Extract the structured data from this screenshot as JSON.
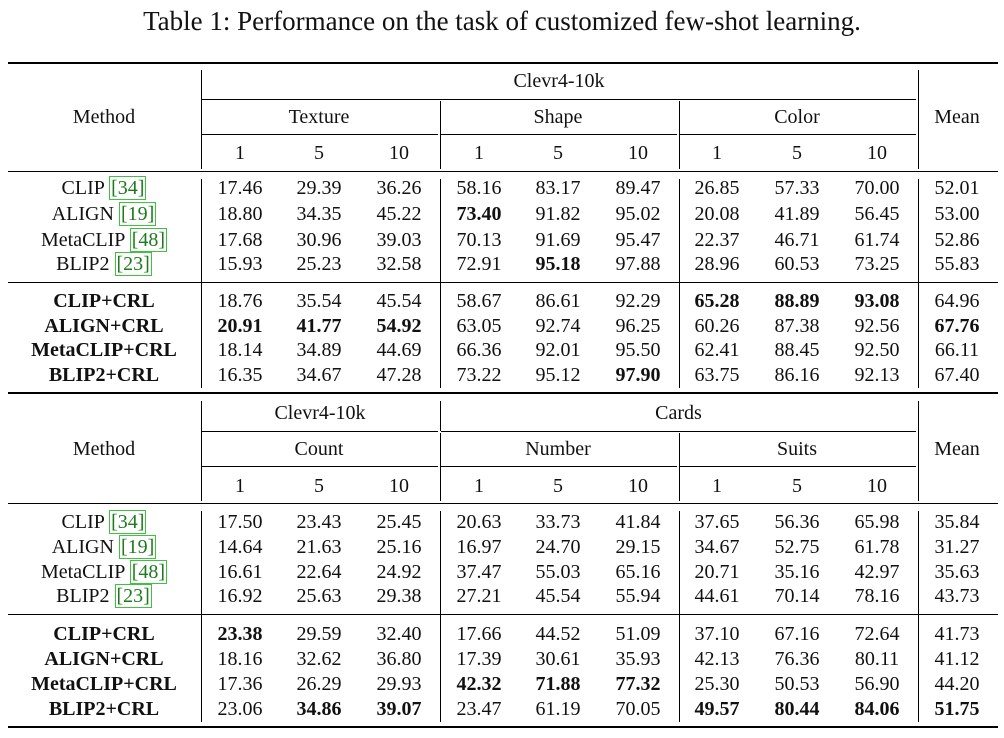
{
  "caption": "Table 1: Performance on the task of customized few-shot learning.",
  "method_header": "Method",
  "mean_header": "Mean",
  "shot_labels": [
    "1",
    "5",
    "10"
  ],
  "tables": [
    {
      "groups": [
        {
          "label": "Clevr4-10k",
          "subgroups": [
            "Texture",
            "Shape",
            "Color"
          ]
        }
      ],
      "baseline_rows": [
        {
          "method": "CLIP",
          "ref": "[34]",
          "values": [
            "17.46",
            "29.39",
            "36.26",
            "58.16",
            "83.17",
            "89.47",
            "26.85",
            "57.33",
            "70.00",
            "52.01"
          ],
          "bold": []
        },
        {
          "method": "ALIGN",
          "ref": "[19]",
          "values": [
            "18.80",
            "34.35",
            "45.22",
            "73.40",
            "91.82",
            "95.02",
            "20.08",
            "41.89",
            "56.45",
            "53.00"
          ],
          "bold": [
            3
          ]
        },
        {
          "method": "MetaCLIP",
          "ref": "[48]",
          "values": [
            "17.68",
            "30.96",
            "39.03",
            "70.13",
            "91.69",
            "95.47",
            "22.37",
            "46.71",
            "61.74",
            "52.86"
          ],
          "bold": []
        },
        {
          "method": "BLIP2",
          "ref": "[23]",
          "values": [
            "15.93",
            "25.23",
            "32.58",
            "72.91",
            "95.18",
            "97.88",
            "28.96",
            "60.53",
            "73.25",
            "55.83"
          ],
          "bold": [
            4
          ]
        }
      ],
      "crl_rows": [
        {
          "method": "CLIP+CRL",
          "values": [
            "18.76",
            "35.54",
            "45.54",
            "58.67",
            "86.61",
            "92.29",
            "65.28",
            "88.89",
            "93.08",
            "64.96"
          ],
          "bold": [
            6,
            7,
            8
          ]
        },
        {
          "method": "ALIGN+CRL",
          "values": [
            "20.91",
            "41.77",
            "54.92",
            "63.05",
            "92.74",
            "96.25",
            "60.26",
            "87.38",
            "92.56",
            "67.76"
          ],
          "bold": [
            0,
            1,
            2,
            9
          ]
        },
        {
          "method": "MetaCLIP+CRL",
          "values": [
            "18.14",
            "34.89",
            "44.69",
            "66.36",
            "92.01",
            "95.50",
            "62.41",
            "88.45",
            "92.50",
            "66.11"
          ],
          "bold": []
        },
        {
          "method": "BLIP2+CRL",
          "values": [
            "16.35",
            "34.67",
            "47.28",
            "73.22",
            "95.12",
            "97.90",
            "63.75",
            "86.16",
            "92.13",
            "67.40"
          ],
          "bold": [
            5
          ]
        }
      ]
    },
    {
      "groups": [
        {
          "label": "Clevr4-10k",
          "subgroups": [
            "Count"
          ]
        },
        {
          "label": "Cards",
          "subgroups": [
            "Number",
            "Suits"
          ]
        }
      ],
      "baseline_rows": [
        {
          "method": "CLIP",
          "ref": "[34]",
          "values": [
            "17.50",
            "23.43",
            "25.45",
            "20.63",
            "33.73",
            "41.84",
            "37.65",
            "56.36",
            "65.98",
            "35.84"
          ],
          "bold": []
        },
        {
          "method": "ALIGN",
          "ref": "[19]",
          "values": [
            "14.64",
            "21.63",
            "25.16",
            "16.97",
            "24.70",
            "29.15",
            "34.67",
            "52.75",
            "61.78",
            "31.27"
          ],
          "bold": []
        },
        {
          "method": "MetaCLIP",
          "ref": "[48]",
          "values": [
            "16.61",
            "22.64",
            "24.92",
            "37.47",
            "55.03",
            "65.16",
            "20.71",
            "35.16",
            "42.97",
            "35.63"
          ],
          "bold": []
        },
        {
          "method": "BLIP2",
          "ref": "[23]",
          "values": [
            "16.92",
            "25.63",
            "29.38",
            "27.21",
            "45.54",
            "55.94",
            "44.61",
            "70.14",
            "78.16",
            "43.73"
          ],
          "bold": []
        }
      ],
      "crl_rows": [
        {
          "method": "CLIP+CRL",
          "values": [
            "23.38",
            "29.59",
            "32.40",
            "17.66",
            "44.52",
            "51.09",
            "37.10",
            "67.16",
            "72.64",
            "41.73"
          ],
          "bold": [
            0
          ]
        },
        {
          "method": "ALIGN+CRL",
          "values": [
            "18.16",
            "32.62",
            "36.80",
            "17.39",
            "30.61",
            "35.93",
            "42.13",
            "76.36",
            "80.11",
            "41.12"
          ],
          "bold": []
        },
        {
          "method": "MetaCLIP+CRL",
          "values": [
            "17.36",
            "26.29",
            "29.93",
            "42.32",
            "71.88",
            "77.32",
            "25.30",
            "50.53",
            "56.90",
            "44.20"
          ],
          "bold": [
            3,
            4,
            5
          ]
        },
        {
          "method": "BLIP2+CRL",
          "values": [
            "23.06",
            "34.86",
            "39.07",
            "23.47",
            "61.19",
            "70.05",
            "49.57",
            "80.44",
            "84.06",
            "51.75"
          ],
          "bold": [
            1,
            2,
            6,
            7,
            8,
            9
          ]
        }
      ]
    }
  ]
}
